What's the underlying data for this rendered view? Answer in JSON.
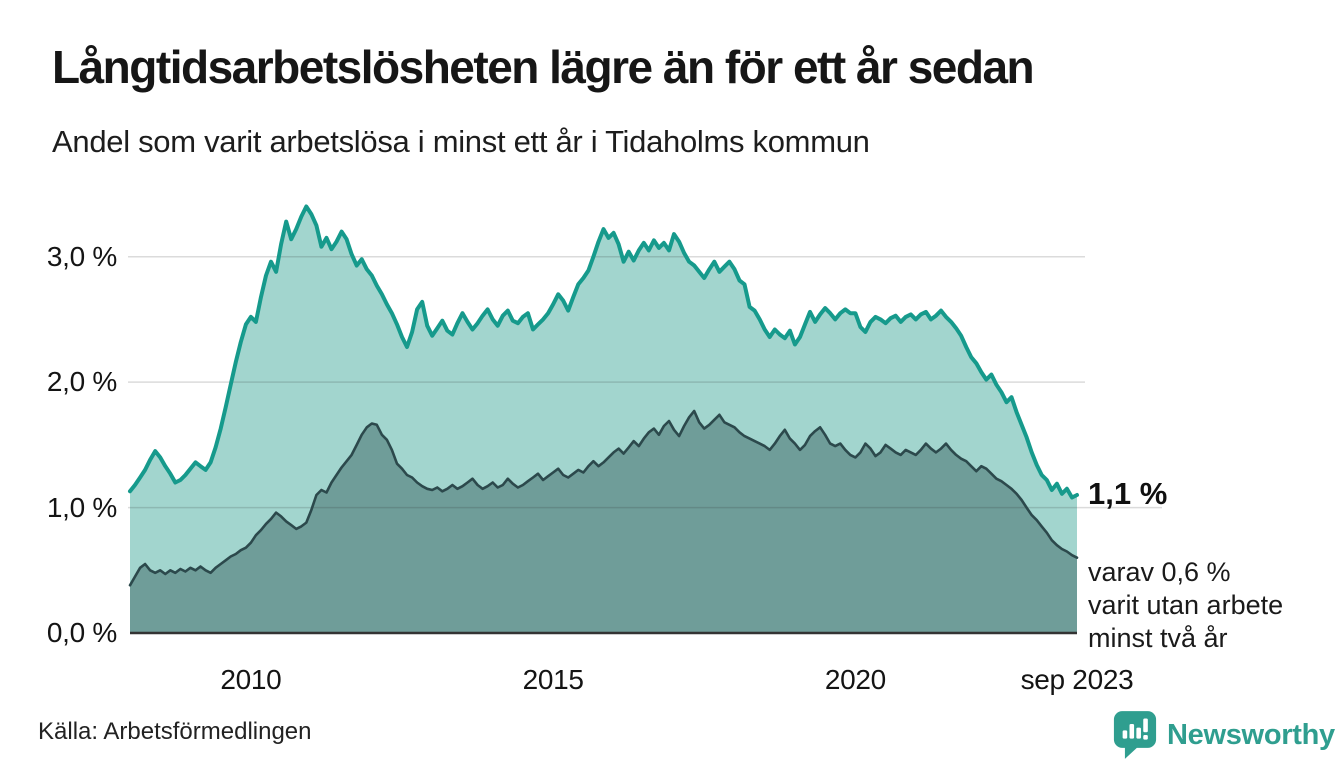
{
  "header": {
    "title": "Långtidsarbetslösheten lägre än för ett år sedan",
    "subtitle": "Andel som varit arbetslösa i minst ett år i Tidaholms kommun"
  },
  "chart_data": {
    "type": "area",
    "title": "Långtidsarbetslösheten lägre än för ett år sedan",
    "subtitle": "Andel som varit arbetslösa i minst ett år i Tidaholms kommun",
    "unit": "%",
    "frequency": "monthly",
    "x_start": "2008-01",
    "x_end": "2023-09",
    "x_range_years": [
      2008.0,
      2023.6667
    ],
    "ylim": [
      0,
      3.5
    ],
    "grid": true,
    "y_ticks": [
      {
        "value": 0,
        "label": "0,0 %"
      },
      {
        "value": 1,
        "label": "1,0 %"
      },
      {
        "value": 2,
        "label": "2,0 %"
      },
      {
        "value": 3,
        "label": "3,0 %"
      }
    ],
    "x_ticks": [
      {
        "year": 2010,
        "label": "2010"
      },
      {
        "year": 2015,
        "label": "2015"
      },
      {
        "year": 2020,
        "label": "2020"
      },
      {
        "year": 2023.6667,
        "label": "sep 2023"
      }
    ],
    "series": [
      {
        "name": "Arbetslösa minst ett år",
        "line_color": "#169a8c",
        "fill_color": "#a2d5ce",
        "end_label": "1,1 %",
        "values": [
          1.13,
          1.18,
          1.24,
          1.3,
          1.38,
          1.45,
          1.4,
          1.33,
          1.27,
          1.2,
          1.22,
          1.26,
          1.31,
          1.36,
          1.33,
          1.3,
          1.36,
          1.48,
          1.63,
          1.8,
          1.98,
          2.16,
          2.32,
          2.46,
          2.52,
          2.48,
          2.68,
          2.85,
          2.96,
          2.88,
          3.1,
          3.28,
          3.14,
          3.22,
          3.32,
          3.4,
          3.34,
          3.25,
          3.08,
          3.15,
          3.06,
          3.12,
          3.2,
          3.14,
          3.02,
          2.93,
          2.98,
          2.9,
          2.85,
          2.77,
          2.7,
          2.62,
          2.55,
          2.46,
          2.36,
          2.28,
          2.4,
          2.58,
          2.64,
          2.45,
          2.37,
          2.43,
          2.49,
          2.41,
          2.38,
          2.47,
          2.55,
          2.48,
          2.42,
          2.47,
          2.53,
          2.58,
          2.5,
          2.45,
          2.53,
          2.57,
          2.49,
          2.47,
          2.52,
          2.55,
          2.42,
          2.46,
          2.5,
          2.55,
          2.62,
          2.7,
          2.65,
          2.57,
          2.68,
          2.78,
          2.83,
          2.89,
          3.0,
          3.12,
          3.22,
          3.15,
          3.19,
          3.1,
          2.96,
          3.04,
          2.97,
          3.05,
          3.11,
          3.05,
          3.13,
          3.07,
          3.11,
          3.05,
          3.18,
          3.12,
          3.03,
          2.96,
          2.93,
          2.88,
          2.83,
          2.9,
          2.96,
          2.88,
          2.92,
          2.96,
          2.9,
          2.81,
          2.78,
          2.6,
          2.57,
          2.5,
          2.42,
          2.36,
          2.42,
          2.38,
          2.35,
          2.41,
          2.3,
          2.36,
          2.46,
          2.56,
          2.48,
          2.54,
          2.59,
          2.55,
          2.5,
          2.55,
          2.58,
          2.55,
          2.55,
          2.44,
          2.4,
          2.48,
          2.52,
          2.5,
          2.47,
          2.51,
          2.53,
          2.48,
          2.52,
          2.54,
          2.5,
          2.54,
          2.56,
          2.5,
          2.53,
          2.57,
          2.52,
          2.48,
          2.43,
          2.37,
          2.28,
          2.2,
          2.15,
          2.08,
          2.02,
          2.06,
          1.98,
          1.92,
          1.84,
          1.88,
          1.76,
          1.66,
          1.56,
          1.44,
          1.34,
          1.26,
          1.22,
          1.14,
          1.19,
          1.11,
          1.15,
          1.08,
          1.1
        ]
      },
      {
        "name": "Arbetslösa minst två år",
        "line_color": "#2c494c",
        "fill_color": "#6f9d99",
        "end_label": "varav 0,6 % varit utan arbete minst två år",
        "values": [
          0.38,
          0.45,
          0.52,
          0.55,
          0.5,
          0.48,
          0.5,
          0.47,
          0.5,
          0.48,
          0.51,
          0.49,
          0.52,
          0.5,
          0.53,
          0.5,
          0.48,
          0.52,
          0.55,
          0.58,
          0.61,
          0.63,
          0.66,
          0.68,
          0.72,
          0.78,
          0.82,
          0.87,
          0.91,
          0.96,
          0.93,
          0.89,
          0.86,
          0.83,
          0.85,
          0.88,
          0.98,
          1.1,
          1.14,
          1.12,
          1.2,
          1.26,
          1.32,
          1.37,
          1.42,
          1.5,
          1.58,
          1.64,
          1.67,
          1.66,
          1.58,
          1.54,
          1.46,
          1.35,
          1.31,
          1.26,
          1.24,
          1.2,
          1.17,
          1.15,
          1.14,
          1.16,
          1.13,
          1.15,
          1.18,
          1.15,
          1.17,
          1.2,
          1.23,
          1.18,
          1.15,
          1.17,
          1.2,
          1.16,
          1.18,
          1.23,
          1.19,
          1.16,
          1.18,
          1.21,
          1.24,
          1.27,
          1.22,
          1.25,
          1.28,
          1.31,
          1.26,
          1.24,
          1.27,
          1.3,
          1.28,
          1.33,
          1.37,
          1.33,
          1.36,
          1.4,
          1.44,
          1.47,
          1.43,
          1.48,
          1.53,
          1.49,
          1.55,
          1.6,
          1.63,
          1.58,
          1.65,
          1.69,
          1.62,
          1.57,
          1.65,
          1.72,
          1.77,
          1.68,
          1.63,
          1.66,
          1.7,
          1.74,
          1.68,
          1.66,
          1.64,
          1.6,
          1.57,
          1.55,
          1.53,
          1.51,
          1.49,
          1.46,
          1.51,
          1.57,
          1.62,
          1.55,
          1.51,
          1.46,
          1.5,
          1.57,
          1.61,
          1.64,
          1.58,
          1.51,
          1.49,
          1.51,
          1.46,
          1.42,
          1.4,
          1.44,
          1.51,
          1.47,
          1.41,
          1.44,
          1.5,
          1.47,
          1.44,
          1.42,
          1.46,
          1.44,
          1.42,
          1.46,
          1.51,
          1.47,
          1.44,
          1.47,
          1.51,
          1.46,
          1.42,
          1.39,
          1.37,
          1.33,
          1.29,
          1.33,
          1.31,
          1.27,
          1.23,
          1.21,
          1.18,
          1.15,
          1.11,
          1.06,
          1.0,
          0.94,
          0.9,
          0.85,
          0.8,
          0.74,
          0.7,
          0.67,
          0.65,
          0.62,
          0.6
        ]
      }
    ]
  },
  "annotations": {
    "end_value": "1,1 %",
    "detail_line1": "varav 0,6 %",
    "detail_line2": "varit utan arbete",
    "detail_line3": "minst två år"
  },
  "footer": {
    "source": "Källa: Arbetsförmedlingen",
    "brand_name": "Newsworthy"
  },
  "colors": {
    "accent_teal": "#169a8c",
    "area_light": "#a2d5ce",
    "area_dark": "#6f9d99",
    "line_dark": "#2c494c",
    "brand_teal": "#2f9e8f",
    "gridline": "#d8d8d8",
    "baseline": "#333333"
  }
}
